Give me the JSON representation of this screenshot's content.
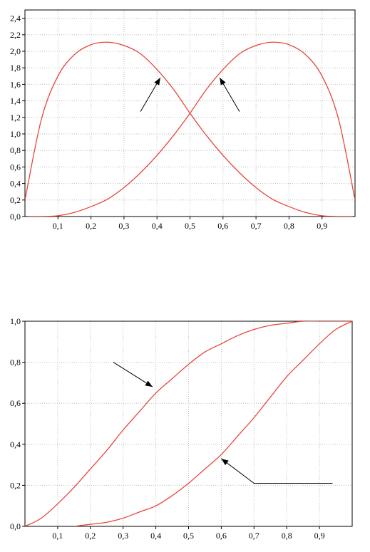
{
  "chart_data": [
    {
      "type": "line",
      "title": "",
      "xlabel": "",
      "ylabel": "",
      "xlim": [
        0,
        1
      ],
      "ylim": [
        0,
        2.5
      ],
      "grid": true,
      "x_ticks": [
        "0,1",
        "0,2",
        "0,3",
        "0,4",
        "0,5",
        "0,6",
        "0,7",
        "0,8",
        "0,9"
      ],
      "y_ticks": [
        "0,0",
        "0,2",
        "0,4",
        "0,6",
        "0,8",
        "1,0",
        "1,2",
        "1,4",
        "1,6",
        "1,8",
        "2,0",
        "2,2",
        "2,4"
      ],
      "series": [
        {
          "x": [
            0.0,
            0.05,
            0.1,
            0.15,
            0.2,
            0.25,
            0.3,
            0.35,
            0.4,
            0.45,
            0.5,
            0.55,
            0.6,
            0.65,
            0.7,
            0.75,
            0.8,
            0.85,
            0.9,
            0.95,
            0.99
          ],
          "values": [
            0.2,
            1.18,
            1.7,
            1.96,
            2.08,
            2.11,
            2.07,
            1.97,
            1.78,
            1.54,
            1.25,
            0.98,
            0.74,
            0.53,
            0.35,
            0.21,
            0.12,
            0.05,
            0.01,
            0.0,
            0.0
          ]
        },
        {
          "x": [
            0.01,
            0.05,
            0.1,
            0.15,
            0.2,
            0.25,
            0.3,
            0.35,
            0.4,
            0.45,
            0.5,
            0.55,
            0.6,
            0.65,
            0.7,
            0.75,
            0.8,
            0.85,
            0.9,
            0.95,
            1.0
          ],
          "values": [
            0.0,
            0.0,
            0.01,
            0.05,
            0.12,
            0.21,
            0.35,
            0.53,
            0.74,
            0.98,
            1.25,
            1.54,
            1.78,
            1.97,
            2.07,
            2.11,
            2.08,
            1.96,
            1.7,
            1.18,
            0.2
          ]
        }
      ],
      "annotations": [
        {
          "type": "arrow",
          "from": [
            0.35,
            1.27
          ],
          "to": [
            0.41,
            1.68
          ]
        },
        {
          "type": "arrow",
          "from": [
            0.65,
            1.27
          ],
          "to": [
            0.59,
            1.68
          ]
        }
      ]
    },
    {
      "type": "line",
      "title": "",
      "xlabel": "",
      "ylabel": "",
      "xlim": [
        0,
        1
      ],
      "ylim": [
        0,
        1
      ],
      "grid": true,
      "x_ticks": [
        "0,1",
        "0,2",
        "0,3",
        "0,4",
        "0,5",
        "0,6",
        "0,7",
        "0,8",
        "0,9"
      ],
      "y_ticks": [
        "0,0",
        "0,2",
        "0,4",
        "0,6",
        "0,8",
        "1,0"
      ],
      "series": [
        {
          "x": [
            0.0,
            0.05,
            0.1,
            0.15,
            0.2,
            0.25,
            0.3,
            0.35,
            0.4,
            0.45,
            0.5,
            0.55,
            0.6,
            0.65,
            0.7,
            0.75,
            0.8,
            0.85,
            0.9,
            0.95,
            1.0
          ],
          "values": [
            0.0,
            0.04,
            0.11,
            0.19,
            0.28,
            0.37,
            0.47,
            0.56,
            0.65,
            0.72,
            0.79,
            0.85,
            0.89,
            0.93,
            0.96,
            0.98,
            0.99,
            1.0,
            1.0,
            1.0,
            1.0
          ]
        },
        {
          "x": [
            0.15,
            0.2,
            0.25,
            0.3,
            0.35,
            0.4,
            0.45,
            0.5,
            0.55,
            0.6,
            0.65,
            0.7,
            0.75,
            0.8,
            0.85,
            0.9,
            0.95,
            1.0
          ],
          "values": [
            0.0,
            0.01,
            0.02,
            0.04,
            0.07,
            0.1,
            0.15,
            0.21,
            0.28,
            0.35,
            0.44,
            0.53,
            0.63,
            0.73,
            0.81,
            0.89,
            0.96,
            1.0
          ]
        }
      ],
      "annotations": [
        {
          "type": "arrow",
          "from": [
            0.27,
            0.8
          ],
          "to": [
            0.39,
            0.68
          ]
        },
        {
          "type": "arrow",
          "from": [
            0.94,
            0.21
          ],
          "to": [
            0.7,
            0.21
          ],
          "then": [
            0.6,
            0.33
          ]
        }
      ]
    }
  ]
}
